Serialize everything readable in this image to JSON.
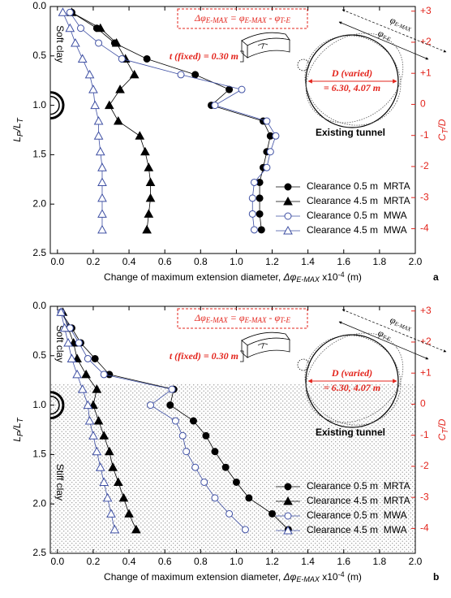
{
  "chart_data": [
    {
      "type": "line",
      "panel_label": "a",
      "xlabel": [
        "Change of maximum extension diameter,  ",
        "Δφ",
        "E-MAX",
        " x10",
        "-4",
        " (m)"
      ],
      "ylabel": [
        "L",
        "P",
        "/L",
        "T"
      ],
      "y2label": [
        "C",
        "T",
        "/D"
      ],
      "xlim": [
        -0.04,
        2.0
      ],
      "xticks": [
        {
          "value": 0,
          "label": "0.0"
        },
        {
          "value": 0.2,
          "label": "0.2"
        },
        {
          "value": 0.4,
          "label": "0.4"
        },
        {
          "value": 0.6,
          "label": "0.6"
        },
        {
          "value": 0.8,
          "label": "0.8"
        },
        {
          "value": 1.0,
          "label": "1.0"
        },
        {
          "value": 1.2,
          "label": "1.2"
        },
        {
          "value": 1.4,
          "label": "1.4"
        },
        {
          "value": 1.6,
          "label": "1.6"
        },
        {
          "value": 1.8,
          "label": "1.8"
        },
        {
          "value": 2.0,
          "label": "2.0"
        }
      ],
      "ylim": [
        2.5,
        0
      ],
      "yticks": [
        {
          "value": 0,
          "label": "0.0"
        },
        {
          "value": 0.5,
          "label": "0.5"
        },
        {
          "value": 1.0,
          "label": "1.0"
        },
        {
          "value": 1.5,
          "label": "1.5"
        },
        {
          "value": 2.0,
          "label": "2.0"
        },
        {
          "value": 2.5,
          "label": "2.5"
        }
      ],
      "y2lim": [
        -4.8,
        3.15
      ],
      "y2ticks": [
        {
          "value": 3,
          "label": "+3"
        },
        {
          "value": 2,
          "label": "+2"
        },
        {
          "value": 1,
          "label": "+1"
        },
        0,
        -1,
        -2,
        -3,
        -4
      ],
      "legend": "lower right",
      "positions": [
        0.06,
        0.22,
        0.37,
        0.53,
        0.69,
        0.84,
        1.0,
        1.16,
        1.31,
        1.47,
        1.63,
        1.78,
        1.94,
        2.1,
        2.26
      ],
      "series": [
        {
          "name": "Clearance 0.5 m  MRTA",
          "color": "#000000",
          "marker": "circle",
          "filled": true,
          "values": [
            0.08,
            0.22,
            0.32,
            0.5,
            0.77,
            0.96,
            0.86,
            1.15,
            1.19,
            1.17,
            1.15,
            1.13,
            1.13,
            1.13,
            1.14
          ]
        },
        {
          "name": "Clearance 4.5 m  MRTA",
          "color": "#000000",
          "marker": "triangle",
          "filled": true,
          "values": [
            0.08,
            0.24,
            0.33,
            0.38,
            0.43,
            0.35,
            0.29,
            0.34,
            0.46,
            0.49,
            0.51,
            0.52,
            0.52,
            0.51,
            0.5
          ]
        },
        {
          "name": "Clearance 0.5 m  MWA",
          "color": "#3e4fa3",
          "marker": "circle",
          "filled": false,
          "values": [
            0.07,
            0.13,
            0.23,
            0.36,
            0.69,
            1.03,
            0.88,
            1.17,
            1.22,
            1.19,
            1.17,
            1.1,
            1.09,
            1.09,
            1.1
          ]
        },
        {
          "name": "Clearance 4.5 m  MWA",
          "color": "#3e4fa3",
          "marker": "triangle",
          "filled": false,
          "values": [
            0.03,
            0.07,
            0.1,
            0.14,
            0.18,
            0.2,
            0.21,
            0.23,
            0.23,
            0.24,
            0.25,
            0.25,
            0.25,
            0.25,
            0.25
          ]
        }
      ],
      "layers": [
        "Soft clay"
      ],
      "annotations": {
        "formula": [
          "Δφ",
          "E-MAX",
          " = φ",
          "E-MAX",
          " - φ",
          "T-E"
        ],
        "thickness": "t (fixed) = 0.30 m",
        "diameter": "D (varied)",
        "diameter_values": "= 6.30, 4.07 m",
        "tunnel": "Existing tunnel",
        "phi_outer": [
          "φ",
          "E-MAX"
        ],
        "phi_inner": [
          "φ",
          "T-E"
        ]
      }
    },
    {
      "type": "line",
      "panel_label": "b",
      "xlabel": [
        "Change of maximum extension diameter,  ",
        "Δφ",
        "E-MAX",
        " x10",
        "-4",
        " (m)"
      ],
      "ylabel": [
        "L",
        "P",
        "/L",
        "T"
      ],
      "y2label": [
        "C",
        "T",
        "/D"
      ],
      "xlim": [
        -0.04,
        2.0
      ],
      "xticks": [
        {
          "value": 0,
          "label": "0.0"
        },
        {
          "value": 0.2,
          "label": "0.2"
        },
        {
          "value": 0.4,
          "label": "0.4"
        },
        {
          "value": 0.6,
          "label": "0.6"
        },
        {
          "value": 0.8,
          "label": "0.8"
        },
        {
          "value": 1.0,
          "label": "1.0"
        },
        {
          "value": 1.2,
          "label": "1.2"
        },
        {
          "value": 1.4,
          "label": "1.4"
        },
        {
          "value": 1.6,
          "label": "1.6"
        },
        {
          "value": 1.8,
          "label": "1.8"
        },
        {
          "value": 2.0,
          "label": "2.0"
        }
      ],
      "ylim": [
        2.5,
        0
      ],
      "yticks": [
        {
          "value": 0,
          "label": "0.0"
        },
        {
          "value": 0.5,
          "label": "0.5"
        },
        {
          "value": 1.0,
          "label": "1.0"
        },
        {
          "value": 1.5,
          "label": "1.5"
        },
        {
          "value": 2.0,
          "label": "2.0"
        },
        {
          "value": 2.5,
          "label": "2.5"
        }
      ],
      "y2lim": [
        -4.8,
        3.15
      ],
      "y2ticks": [
        {
          "value": 3,
          "label": "+3"
        },
        {
          "value": 2,
          "label": "+2"
        },
        {
          "value": 1,
          "label": "+1"
        },
        0,
        -1,
        -2,
        -3,
        -4
      ],
      "legend": "lower right",
      "shaded_from": 0.78,
      "positions": [
        0.06,
        0.22,
        0.37,
        0.53,
        0.69,
        0.84,
        1.0,
        1.16,
        1.31,
        1.47,
        1.63,
        1.78,
        1.94,
        2.1,
        2.26
      ],
      "series": [
        {
          "name": "Clearance 0.5 m  MRTA",
          "color": "#000000",
          "marker": "circle",
          "filled": true,
          "values": [
            0.02,
            0.08,
            0.13,
            0.21,
            0.29,
            0.65,
            0.63,
            0.76,
            0.83,
            0.88,
            0.94,
            1.0,
            1.07,
            1.2,
            1.29
          ]
        },
        {
          "name": "Clearance 4.5 m  MRTA",
          "color": "#000000",
          "marker": "triangle",
          "filled": true,
          "values": [
            0.03,
            0.06,
            0.09,
            0.11,
            0.16,
            0.22,
            0.2,
            0.23,
            0.26,
            0.29,
            0.31,
            0.34,
            0.37,
            0.4,
            0.44
          ]
        },
        {
          "name": "Clearance 0.5 m  MWA",
          "color": "#3e4fa3",
          "marker": "circle",
          "filled": false,
          "values": [
            0.02,
            0.07,
            0.12,
            0.17,
            0.26,
            0.64,
            0.52,
            0.66,
            0.7,
            0.72,
            0.77,
            0.82,
            0.88,
            0.96,
            1.05
          ]
        },
        {
          "name": "Clearance 4.5 m  MWA",
          "color": "#3e4fa3",
          "marker": "triangle",
          "filled": false,
          "values": [
            0.02,
            0.04,
            0.06,
            0.08,
            0.11,
            0.14,
            0.17,
            0.18,
            0.2,
            0.22,
            0.24,
            0.26,
            0.28,
            0.3,
            0.32
          ]
        }
      ],
      "layers": [
        "Soft clay",
        "Stiff clay"
      ],
      "annotations": {
        "formula": [
          "Δφ",
          "E-MAX",
          " = φ",
          "E-MAX",
          " - φ",
          "T-E"
        ],
        "thickness": "t (fixed) = 0.30 m",
        "diameter": "D (varied)",
        "diameter_values": "= 6.30, 4.07 m",
        "tunnel": "Existing tunnel",
        "phi_outer": [
          "φ",
          "E-MAX"
        ],
        "phi_inner": [
          "φ",
          "T-E"
        ]
      }
    }
  ]
}
